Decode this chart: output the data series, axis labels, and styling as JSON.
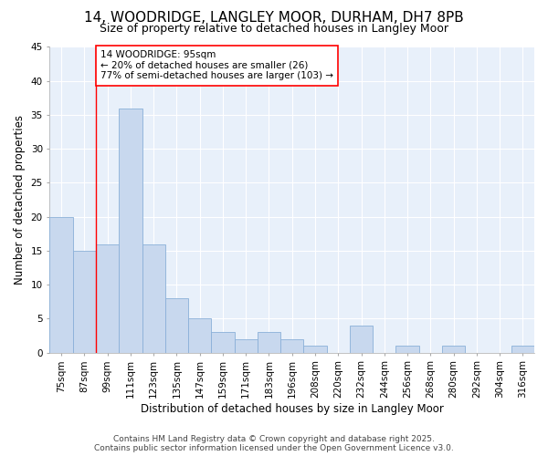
{
  "title": "14, WOODRIDGE, LANGLEY MOOR, DURHAM, DH7 8PB",
  "subtitle": "Size of property relative to detached houses in Langley Moor",
  "xlabel": "Distribution of detached houses by size in Langley Moor",
  "ylabel": "Number of detached properties",
  "categories": [
    "75sqm",
    "87sqm",
    "99sqm",
    "111sqm",
    "123sqm",
    "135sqm",
    "147sqm",
    "159sqm",
    "171sqm",
    "183sqm",
    "196sqm",
    "208sqm",
    "220sqm",
    "232sqm",
    "244sqm",
    "256sqm",
    "268sqm",
    "280sqm",
    "292sqm",
    "304sqm",
    "316sqm"
  ],
  "values": [
    20,
    15,
    16,
    36,
    16,
    8,
    5,
    3,
    2,
    3,
    2,
    1,
    0,
    4,
    0,
    1,
    0,
    1,
    0,
    0,
    1
  ],
  "bar_color": "#c8d8ee",
  "bar_edge_color": "#8ab0d8",
  "grid_color": "#d0dcea",
  "background_color": "#ffffff",
  "plot_bg_color": "#e8f0fa",
  "ylim": [
    0,
    45
  ],
  "yticks": [
    0,
    5,
    10,
    15,
    20,
    25,
    30,
    35,
    40,
    45
  ],
  "vline_x": 1.5,
  "annotation_box_text": "14 WOODRIDGE: 95sqm\n← 20% of detached houses are smaller (26)\n77% of semi-detached houses are larger (103) →",
  "footer": "Contains HM Land Registry data © Crown copyright and database right 2025.\nContains public sector information licensed under the Open Government Licence v3.0.",
  "title_fontsize": 11,
  "subtitle_fontsize": 9,
  "xlabel_fontsize": 8.5,
  "ylabel_fontsize": 8.5,
  "tick_fontsize": 7.5,
  "annotation_fontsize": 7.5,
  "footer_fontsize": 6.5
}
